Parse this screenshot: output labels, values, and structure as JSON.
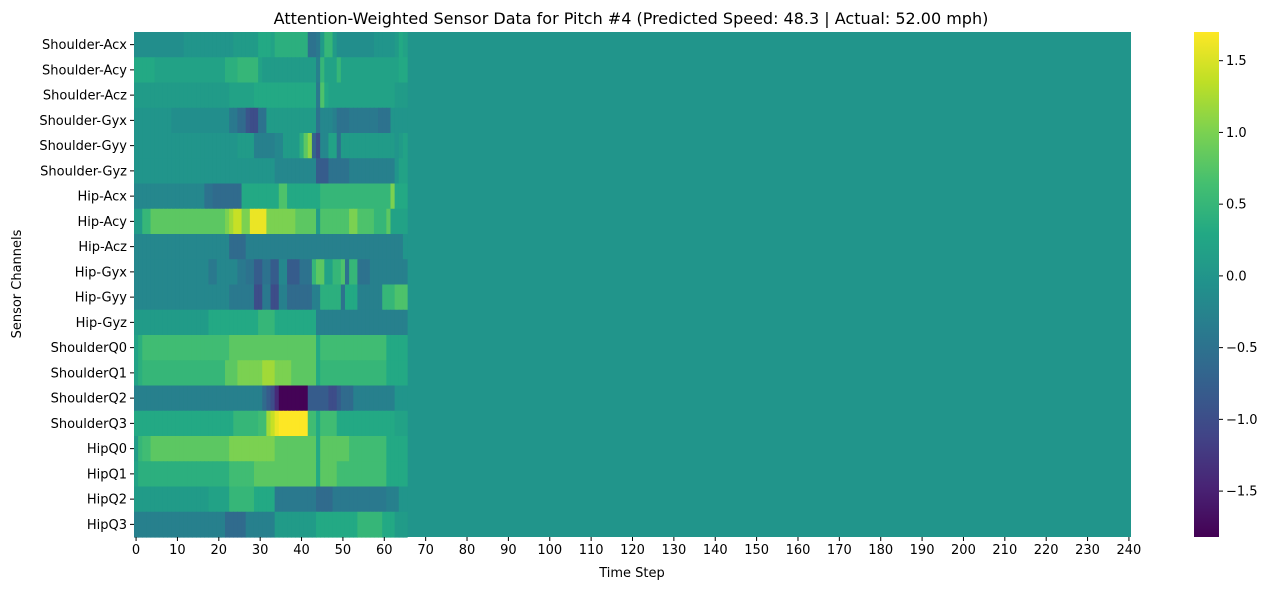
{
  "chart_data": {
    "type": "heatmap",
    "title": "Attention-Weighted Sensor Data for Pitch #4 (Predicted Speed: 48.3 | Actual: 52.00 mph)",
    "xlabel": "Time Step",
    "ylabel": "Sensor Channels",
    "rows": [
      "Shoulder-Acx",
      "Shoulder-Acy",
      "Shoulder-Acz",
      "Shoulder-Gyx",
      "Shoulder-Gyy",
      "Shoulder-Gyz",
      "Hip-Acx",
      "Hip-Acy",
      "Hip-Acz",
      "Hip-Gyx",
      "Hip-Gyy",
      "Hip-Gyz",
      "ShoulderQ0",
      "ShoulderQ1",
      "ShoulderQ2",
      "ShoulderQ3",
      "HipQ0",
      "HipQ1",
      "HipQ2",
      "HipQ3"
    ],
    "x_ticks": [
      0,
      10,
      20,
      30,
      40,
      50,
      60,
      70,
      80,
      90,
      100,
      110,
      120,
      130,
      140,
      150,
      160,
      170,
      180,
      190,
      200,
      210,
      220,
      230,
      240
    ],
    "n_steps": 241,
    "active_steps": 66,
    "padding_value": 0.0,
    "colormap": "viridis",
    "vmin": -1.82,
    "vmax": 1.7,
    "colorbar_ticks": [
      1.5,
      1.0,
      0.5,
      0.0,
      -0.5,
      -1.0,
      -1.5
    ],
    "colorbar_tick_labels": [
      "1.5",
      "1.0",
      "0.5",
      "0.0",
      "−0.5",
      "−1.0",
      "−1.5"
    ],
    "values": [
      [
        -0.1,
        -0.1,
        -0.1,
        -0.1,
        -0.1,
        -0.1,
        -0.1,
        -0.1,
        -0.1,
        -0.1,
        -0.1,
        -0.1,
        0,
        0,
        0,
        0,
        0,
        0,
        0,
        0,
        0,
        0,
        0,
        0,
        0.1,
        0.1,
        0.1,
        0.1,
        0.1,
        0.1,
        0.3,
        0.3,
        0.3,
        0.2,
        0.4,
        0.4,
        0.4,
        0.4,
        0.4,
        0.4,
        0.4,
        0.4,
        -0.5,
        -0.5,
        -0.4,
        0.1,
        0.5,
        0.5,
        0.1,
        -0.1,
        -0.1,
        -0.1,
        -0.1,
        -0.1,
        -0.1,
        -0.1,
        -0.1,
        -0.1,
        0,
        0,
        0,
        0,
        0,
        0.1,
        0.3,
        0.2
      ],
      [
        0.3,
        0.3,
        0.3,
        0.3,
        0.3,
        0.2,
        0.2,
        0.2,
        0.2,
        0.2,
        0.2,
        0.2,
        0.2,
        0.2,
        0.2,
        0.2,
        0.2,
        0.2,
        0.2,
        0.2,
        0.2,
        0.2,
        0.4,
        0.4,
        0.4,
        0.5,
        0.5,
        0.5,
        0.5,
        0.5,
        0.2,
        0.1,
        0.1,
        0.1,
        0.1,
        0.1,
        0.1,
        0.1,
        0.1,
        0.1,
        0.1,
        0.1,
        0.1,
        0.1,
        -0.3,
        0.5,
        0.2,
        0.2,
        0.2,
        0.5,
        0.2,
        0.2,
        0.2,
        0.2,
        0.2,
        0.2,
        0.2,
        0.2,
        0.2,
        0.2,
        0.2,
        0.2,
        0.2,
        0.2,
        0.3,
        0.3
      ],
      [
        0.1,
        0.1,
        0.1,
        0.1,
        0.1,
        0.1,
        0.1,
        0.1,
        0.1,
        0.1,
        0.1,
        0.1,
        0.1,
        0.1,
        0.1,
        0.1,
        0.1,
        0.1,
        0.1,
        0.1,
        0.1,
        0.1,
        0.1,
        0.2,
        0.2,
        0.2,
        0.2,
        0.2,
        0.2,
        0.3,
        0.3,
        0.3,
        0.3,
        0.3,
        0.3,
        0.3,
        0.3,
        0.3,
        0.3,
        0.3,
        0.3,
        0.3,
        0.3,
        0.3,
        -0.4,
        0.7,
        0.3,
        0.2,
        0.2,
        0.2,
        0.2,
        0.2,
        0.2,
        0.2,
        0.2,
        0.2,
        0.2,
        0.2,
        0.2,
        0.2,
        0.2,
        0.2,
        0.2,
        0.1,
        0.1,
        0.1
      ],
      [
        0,
        0,
        0,
        0,
        0,
        0,
        0,
        0,
        0,
        -0.1,
        -0.1,
        -0.1,
        -0.1,
        -0.1,
        -0.1,
        -0.1,
        -0.1,
        -0.1,
        -0.1,
        -0.1,
        -0.1,
        -0.1,
        -0.1,
        -0.4,
        -0.4,
        -0.6,
        -0.6,
        -0.9,
        -1.0,
        -1.0,
        -0.5,
        -0.5,
        0.1,
        0.1,
        0.1,
        0.1,
        0.1,
        0.1,
        0.1,
        0.1,
        0.1,
        0.1,
        0.1,
        0.1,
        -0.5,
        -0.2,
        -0.2,
        -0.2,
        -0.3,
        -0.5,
        -0.5,
        -0.5,
        -0.4,
        -0.4,
        -0.4,
        -0.4,
        -0.4,
        -0.4,
        -0.4,
        -0.5,
        -0.5,
        -0.5,
        0,
        0,
        0,
        0
      ],
      [
        0,
        0,
        0,
        0,
        0,
        0,
        0,
        0,
        0,
        0,
        0,
        0,
        0,
        0,
        0,
        0,
        0,
        0,
        0,
        0,
        0,
        0,
        0,
        0,
        0,
        0.1,
        0.1,
        0.1,
        0.1,
        -0.3,
        -0.3,
        -0.3,
        -0.3,
        -0.3,
        -0.2,
        -0.2,
        0.1,
        0.1,
        0.1,
        0.1,
        0.4,
        0.8,
        1.1,
        -0.7,
        -1.0,
        -0.2,
        -0.2,
        0.2,
        0.2,
        -0.5,
        0.1,
        0.1,
        0.1,
        0.1,
        0.1,
        0.1,
        0.1,
        0.1,
        0.1,
        0.1,
        0.1,
        0.1,
        0.1,
        0,
        0.1,
        0.2
      ],
      [
        0,
        0,
        0,
        0,
        0,
        0,
        0,
        0,
        0,
        0,
        0,
        0,
        0,
        0,
        0,
        0,
        0,
        0,
        0,
        0,
        0,
        0,
        0,
        0,
        0,
        0,
        0,
        0,
        0,
        0,
        0,
        0,
        0,
        0,
        -0.2,
        -0.2,
        -0.2,
        -0.2,
        -0.2,
        -0.2,
        -0.2,
        -0.2,
        -0.2,
        -0.2,
        -0.8,
        -0.8,
        -0.8,
        -0.5,
        -0.5,
        -0.5,
        -0.5,
        -0.5,
        -0.3,
        -0.3,
        -0.3,
        -0.3,
        -0.3,
        -0.3,
        -0.3,
        -0.3,
        -0.3,
        -0.3,
        -0.3,
        0,
        0.2,
        0.2
      ],
      [
        -0.2,
        -0.2,
        -0.2,
        -0.2,
        -0.2,
        -0.2,
        -0.2,
        -0.2,
        -0.2,
        -0.2,
        -0.2,
        -0.2,
        -0.2,
        -0.2,
        -0.2,
        -0.2,
        -0.2,
        -0.5,
        -0.5,
        -0.6,
        -0.6,
        -0.6,
        -0.6,
        -0.6,
        -0.6,
        -0.6,
        0.3,
        0.3,
        0.3,
        0.3,
        0.3,
        0.3,
        0.3,
        0.3,
        0.3,
        0.7,
        0.7,
        0.3,
        0.3,
        0.3,
        0.3,
        0.3,
        0.3,
        0.3,
        0.3,
        0.5,
        0.5,
        0.5,
        0.5,
        0.5,
        0.5,
        0.5,
        0.5,
        0.5,
        0.5,
        0.5,
        0.5,
        0.5,
        0.5,
        0.5,
        0.5,
        0.5,
        1.0,
        0.3,
        0.3,
        0.3
      ],
      [
        0.1,
        0.1,
        0.5,
        0.5,
        0.8,
        0.8,
        0.8,
        0.8,
        0.8,
        0.8,
        0.8,
        0.8,
        0.8,
        0.8,
        0.8,
        0.8,
        0.8,
        0.8,
        0.8,
        0.8,
        0.8,
        0.8,
        1.0,
        1.2,
        1.4,
        1.4,
        1.0,
        1.0,
        1.6,
        1.6,
        1.6,
        1.6,
        1.0,
        1.0,
        1.0,
        1.0,
        1.0,
        1.0,
        1.0,
        0.8,
        0.8,
        0.8,
        0.8,
        0.8,
        0.1,
        0.7,
        0.7,
        0.7,
        0.7,
        0.7,
        0.7,
        0.7,
        1.0,
        1.0,
        0.7,
        0.7,
        0.7,
        0.7,
        0.5,
        0.5,
        0.5,
        0.8,
        0.2,
        0.2,
        0.2,
        0.2
      ],
      [
        -0.2,
        -0.2,
        -0.2,
        -0.2,
        -0.2,
        -0.2,
        -0.2,
        -0.2,
        -0.2,
        -0.2,
        -0.2,
        -0.2,
        -0.2,
        -0.2,
        -0.2,
        -0.2,
        -0.2,
        -0.2,
        -0.2,
        -0.2,
        -0.2,
        -0.2,
        -0.2,
        -0.6,
        -0.6,
        -0.6,
        -0.6,
        -0.3,
        -0.3,
        -0.3,
        -0.3,
        -0.3,
        -0.3,
        -0.3,
        -0.3,
        -0.3,
        -0.3,
        -0.3,
        -0.3,
        -0.3,
        -0.3,
        -0.3,
        -0.3,
        -0.3,
        -0.3,
        -0.3,
        -0.3,
        -0.3,
        -0.3,
        -0.3,
        -0.3,
        -0.3,
        -0.3,
        -0.3,
        -0.3,
        -0.3,
        -0.3,
        -0.3,
        -0.3,
        -0.3,
        -0.3,
        -0.3,
        -0.3,
        -0.3,
        -0.3,
        0
      ],
      [
        -0.2,
        -0.2,
        -0.2,
        -0.2,
        -0.2,
        -0.2,
        -0.2,
        -0.2,
        -0.2,
        -0.2,
        -0.2,
        -0.2,
        -0.2,
        -0.2,
        -0.2,
        -0.2,
        -0.2,
        -0.2,
        -0.4,
        -0.4,
        -0.2,
        -0.2,
        -0.2,
        -0.2,
        -0.2,
        -0.4,
        -0.4,
        -0.5,
        -0.5,
        -0.8,
        -0.8,
        -0.5,
        -0.5,
        -0.8,
        -0.8,
        -0.2,
        -0.2,
        -0.8,
        -0.8,
        -0.8,
        -0.5,
        -0.5,
        -0.5,
        0.5,
        0.8,
        0.8,
        0.2,
        0.2,
        0.5,
        0.5,
        0.7,
        -0.5,
        0.5,
        0.5,
        -0.5,
        -0.5,
        -0.5,
        -0.3,
        -0.3,
        -0.3,
        -0.3,
        -0.3,
        -0.3,
        -0.3,
        -0.3,
        -0.3
      ],
      [
        -0.2,
        -0.2,
        -0.2,
        -0.2,
        -0.2,
        -0.2,
        -0.2,
        -0.2,
        -0.2,
        -0.2,
        -0.2,
        -0.2,
        -0.2,
        -0.2,
        -0.2,
        -0.2,
        -0.2,
        -0.2,
        -0.2,
        -0.2,
        -0.2,
        -0.2,
        -0.2,
        -0.4,
        -0.4,
        -0.4,
        -0.4,
        -0.4,
        -0.4,
        -1.0,
        -1.0,
        -0.4,
        -0.4,
        -1.0,
        -1.0,
        -0.3,
        -0.3,
        -0.6,
        -0.6,
        -0.6,
        -0.6,
        -0.6,
        -0.6,
        -0.3,
        -0.3,
        0.4,
        0.4,
        0.4,
        0.4,
        0.4,
        -0.5,
        0.3,
        0.3,
        0.3,
        -0.3,
        -0.3,
        -0.3,
        -0.3,
        -0.3,
        -0.3,
        0.5,
        0.5,
        0.5,
        0.7,
        0.7,
        0.7
      ],
      [
        0.1,
        0.1,
        0.1,
        0.1,
        0.1,
        0.1,
        0.1,
        0.1,
        0.1,
        0.1,
        0.1,
        0.1,
        0.1,
        0.1,
        0.1,
        0.1,
        0.1,
        0.1,
        0.3,
        0.3,
        0.3,
        0.3,
        0.3,
        0.3,
        0.3,
        0.3,
        0.3,
        0.3,
        0.3,
        0.3,
        0.5,
        0.5,
        0.5,
        0.5,
        0.3,
        0.3,
        0.3,
        0.3,
        0.3,
        0.3,
        0.3,
        0.3,
        0.3,
        0.3,
        -0.3,
        -0.3,
        -0.3,
        -0.3,
        -0.3,
        -0.3,
        -0.3,
        -0.3,
        -0.3,
        -0.3,
        -0.3,
        -0.3,
        -0.3,
        -0.3,
        -0.3,
        -0.3,
        -0.3,
        -0.3,
        -0.3,
        -0.3,
        -0.3,
        -0.3
      ],
      [
        0.2,
        0.4,
        0.6,
        0.6,
        0.6,
        0.6,
        0.6,
        0.6,
        0.6,
        0.6,
        0.6,
        0.6,
        0.6,
        0.6,
        0.6,
        0.6,
        0.6,
        0.6,
        0.6,
        0.6,
        0.6,
        0.6,
        0.6,
        0.8,
        0.8,
        0.8,
        0.8,
        0.8,
        0.8,
        0.8,
        0.8,
        0.8,
        0.8,
        0.8,
        0.8,
        0.8,
        0.8,
        0.8,
        0.8,
        0.8,
        0.8,
        0.8,
        0.8,
        0.8,
        0.3,
        0.6,
        0.6,
        0.6,
        0.6,
        0.6,
        0.6,
        0.6,
        0.6,
        0.6,
        0.6,
        0.6,
        0.6,
        0.6,
        0.6,
        0.6,
        0.6,
        0.3,
        0.3,
        0.3,
        0.3,
        0.3
      ],
      [
        0.2,
        0.4,
        0.5,
        0.5,
        0.5,
        0.5,
        0.5,
        0.5,
        0.5,
        0.5,
        0.5,
        0.5,
        0.5,
        0.5,
        0.5,
        0.5,
        0.5,
        0.5,
        0.5,
        0.5,
        0.5,
        0.5,
        0.8,
        0.8,
        0.8,
        1.0,
        1.0,
        1.0,
        1.0,
        1.0,
        1.0,
        1.2,
        1.2,
        1.2,
        1.0,
        1.0,
        1.0,
        1.0,
        0.8,
        0.8,
        0.8,
        0.8,
        0.8,
        0.8,
        0.3,
        0.5,
        0.5,
        0.5,
        0.5,
        0.5,
        0.5,
        0.5,
        0.5,
        0.5,
        0.5,
        0.5,
        0.5,
        0.5,
        0.5,
        0.5,
        0.5,
        0.3,
        0.3,
        0.3,
        0.3,
        0.3
      ],
      [
        -0.3,
        -0.3,
        -0.3,
        -0.3,
        -0.3,
        -0.3,
        -0.3,
        -0.3,
        -0.3,
        -0.3,
        -0.3,
        -0.3,
        -0.3,
        -0.3,
        -0.3,
        -0.3,
        -0.3,
        -0.3,
        -0.3,
        -0.3,
        -0.3,
        -0.3,
        -0.3,
        -0.3,
        -0.3,
        -0.3,
        -0.3,
        -0.3,
        -0.3,
        -0.3,
        -0.3,
        -0.6,
        -0.8,
        -1.0,
        -1.4,
        -1.8,
        -1.8,
        -1.8,
        -1.8,
        -1.8,
        -1.8,
        -1.8,
        -0.8,
        -0.8,
        -0.8,
        -0.8,
        -0.8,
        -1.0,
        -1.0,
        -0.8,
        -0.6,
        -0.6,
        -0.6,
        -0.3,
        -0.3,
        -0.3,
        -0.3,
        -0.3,
        -0.3,
        -0.3,
        -0.3,
        -0.3,
        -0.3,
        0,
        0,
        0
      ],
      [
        0.3,
        0.3,
        0.3,
        0.3,
        0.3,
        0.3,
        0.3,
        0.3,
        0.3,
        0.3,
        0.3,
        0.3,
        0.3,
        0.3,
        0.3,
        0.3,
        0.3,
        0.3,
        0.3,
        0.3,
        0.3,
        0.3,
        0.3,
        0.3,
        0.5,
        0.5,
        0.5,
        0.5,
        0.5,
        0.5,
        0.6,
        0.6,
        1.2,
        1.4,
        1.6,
        1.7,
        1.7,
        1.7,
        1.7,
        1.7,
        1.7,
        1.7,
        0.6,
        0.6,
        0.3,
        0.6,
        0.6,
        0.6,
        0.6,
        0.3,
        0.3,
        0.3,
        0.3,
        0.3,
        0.3,
        0.3,
        0.3,
        0.3,
        0.3,
        0.3,
        0.3,
        0.3,
        0.3,
        0.2,
        0.2,
        0.2
      ],
      [
        0.1,
        0.5,
        0.6,
        0.6,
        0.8,
        0.8,
        0.8,
        0.8,
        0.8,
        0.8,
        0.8,
        0.8,
        0.8,
        0.8,
        0.8,
        0.8,
        0.8,
        0.8,
        0.8,
        0.8,
        0.8,
        0.8,
        0.8,
        1.0,
        1.0,
        1.0,
        1.0,
        1.0,
        1.0,
        1.0,
        1.0,
        1.0,
        1.0,
        1.0,
        0.8,
        0.8,
        0.8,
        0.8,
        0.8,
        0.8,
        0.8,
        0.8,
        0.8,
        0.8,
        0.3,
        0.8,
        0.8,
        0.8,
        0.8,
        0.8,
        0.8,
        0.8,
        0.6,
        0.6,
        0.6,
        0.6,
        0.6,
        0.6,
        0.6,
        0.6,
        0.6,
        0.3,
        0.3,
        0.3,
        0.3,
        0.3
      ],
      [
        0.2,
        0.4,
        0.4,
        0.4,
        0.4,
        0.4,
        0.4,
        0.4,
        0.4,
        0.4,
        0.4,
        0.4,
        0.4,
        0.4,
        0.4,
        0.4,
        0.4,
        0.4,
        0.4,
        0.4,
        0.4,
        0.4,
        0.4,
        0.6,
        0.6,
        0.6,
        0.6,
        0.6,
        0.6,
        0.8,
        0.8,
        0.8,
        0.8,
        0.8,
        0.8,
        0.8,
        0.8,
        0.8,
        0.8,
        0.8,
        0.8,
        0.8,
        0.8,
        0.8,
        0.3,
        0.8,
        0.8,
        0.8,
        0.8,
        0.6,
        0.6,
        0.6,
        0.6,
        0.6,
        0.6,
        0.6,
        0.6,
        0.6,
        0.6,
        0.6,
        0.6,
        0.3,
        0.3,
        0.3,
        0.3,
        0.3
      ],
      [
        0.1,
        0.1,
        0.1,
        0.1,
        0.1,
        0.1,
        0.1,
        0.1,
        0.1,
        0.1,
        0.1,
        0.1,
        0.1,
        0.1,
        0.1,
        0.1,
        0.1,
        0.1,
        0.2,
        0.2,
        0.2,
        0.2,
        0.2,
        0.5,
        0.5,
        0.5,
        0.5,
        0.5,
        0.5,
        0.3,
        0.3,
        0.3,
        0.3,
        0.3,
        -0.4,
        -0.4,
        -0.4,
        -0.4,
        -0.4,
        -0.4,
        -0.4,
        -0.4,
        -0.4,
        -0.4,
        -0.6,
        -0.6,
        -0.6,
        -0.6,
        -0.4,
        -0.4,
        -0.4,
        -0.4,
        -0.4,
        -0.4,
        -0.4,
        -0.4,
        -0.4,
        -0.4,
        -0.4,
        -0.4,
        -0.4,
        -0.3,
        -0.3,
        -0.3,
        0,
        0
      ],
      [
        -0.3,
        -0.3,
        -0.3,
        -0.3,
        -0.3,
        -0.3,
        -0.3,
        -0.3,
        -0.3,
        -0.3,
        -0.3,
        -0.3,
        -0.3,
        -0.3,
        -0.3,
        -0.3,
        -0.3,
        -0.3,
        -0.3,
        -0.3,
        -0.3,
        -0.3,
        -0.6,
        -0.6,
        -0.6,
        -0.6,
        -0.6,
        -0.3,
        -0.3,
        -0.3,
        -0.3,
        -0.3,
        -0.3,
        -0.3,
        0.1,
        0.1,
        0.1,
        0.1,
        0.1,
        0.1,
        0.1,
        0.1,
        0.1,
        0.1,
        0.3,
        0.3,
        0.3,
        0.3,
        0.3,
        0.3,
        0.3,
        0.3,
        0.3,
        0.3,
        0.5,
        0.5,
        0.5,
        0.5,
        0.5,
        0.5,
        0.3,
        0.3,
        0.3,
        0.1,
        0.1,
        0.1
      ]
    ]
  }
}
